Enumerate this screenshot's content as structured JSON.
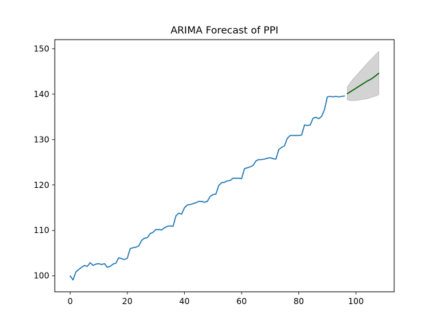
{
  "chart_data": {
    "type": "line",
    "title": "ARIMA Forecast of PPI",
    "xlabel": "",
    "ylabel": "",
    "xlim": [
      -5.4,
      113.4
    ],
    "ylim": [
      96.5,
      152.0
    ],
    "xticks": [
      0,
      20,
      40,
      60,
      80,
      100
    ],
    "yticks": [
      100,
      110,
      120,
      130,
      140,
      150
    ],
    "grid": false,
    "legend": "none",
    "colors": {
      "observed": "#1f77b4",
      "forecast": "#006400",
      "confidence": "#d3d3d3",
      "confidence_edge": "#a9a9a9"
    },
    "series": [
      {
        "role": "observed",
        "x": [
          0,
          1,
          2,
          3,
          4,
          5,
          6,
          7,
          8,
          9,
          10,
          11,
          12,
          13,
          14,
          15,
          16,
          17,
          18,
          19,
          20,
          21,
          22,
          23,
          24,
          25,
          26,
          27,
          28,
          29,
          30,
          31,
          32,
          33,
          34,
          35,
          36,
          37,
          38,
          39,
          40,
          41,
          42,
          43,
          44,
          45,
          46,
          47,
          48,
          49,
          50,
          51,
          52,
          53,
          54,
          55,
          56,
          57,
          58,
          59,
          60,
          61,
          62,
          63,
          64,
          65,
          66,
          67,
          68,
          69,
          70,
          71,
          72,
          73,
          74,
          75,
          76,
          77,
          78,
          79,
          80,
          81,
          82,
          83,
          84,
          85,
          86,
          87,
          88,
          89,
          90,
          91,
          92,
          93,
          94,
          95,
          96
        ],
        "values": [
          100.0,
          99.1,
          100.9,
          101.4,
          101.9,
          102.3,
          102.1,
          102.9,
          102.3,
          102.6,
          102.7,
          102.5,
          102.7,
          101.9,
          102.1,
          102.6,
          102.8,
          104.0,
          103.8,
          103.6,
          103.9,
          106.0,
          106.2,
          106.3,
          106.6,
          107.8,
          108.3,
          108.4,
          109.3,
          109.6,
          110.2,
          110.2,
          110.1,
          110.6,
          110.9,
          111.0,
          110.9,
          113.2,
          113.8,
          113.6,
          115.0,
          115.6,
          115.7,
          115.9,
          116.1,
          116.4,
          116.4,
          116.2,
          116.4,
          117.5,
          117.9,
          118.0,
          119.9,
          120.5,
          120.6,
          120.9,
          121.0,
          121.5,
          121.5,
          121.5,
          121.4,
          123.6,
          123.8,
          124.0,
          124.3,
          125.3,
          125.6,
          125.6,
          125.7,
          125.9,
          126.0,
          125.8,
          125.7,
          127.8,
          128.3,
          128.6,
          130.3,
          130.9,
          130.9,
          130.9,
          130.9,
          131.0,
          133.2,
          133.1,
          133.2,
          134.7,
          134.9,
          134.6,
          135.1,
          136.6,
          139.4,
          139.5,
          139.4,
          139.5,
          139.4,
          139.5,
          139.6
        ]
      },
      {
        "role": "forecast",
        "x": [
          97,
          98,
          99,
          100,
          101,
          102,
          103,
          104,
          105,
          106,
          107,
          108
        ],
        "values": [
          140.1,
          140.5,
          140.9,
          141.3,
          141.7,
          142.1,
          142.5,
          142.9,
          143.2,
          143.6,
          144.1,
          144.6
        ]
      }
    ],
    "confidence_band": {
      "x": [
        97,
        98,
        99,
        100,
        101,
        102,
        103,
        104,
        105,
        106,
        107,
        108
      ],
      "lower": [
        138.7,
        138.6,
        138.6,
        138.6,
        138.7,
        138.8,
        138.9,
        139.0,
        139.2,
        139.4,
        139.6,
        139.9
      ],
      "upper": [
        141.6,
        142.5,
        143.3,
        144.0,
        144.7,
        145.4,
        146.1,
        146.8,
        147.5,
        148.1,
        148.8,
        149.4
      ]
    }
  }
}
